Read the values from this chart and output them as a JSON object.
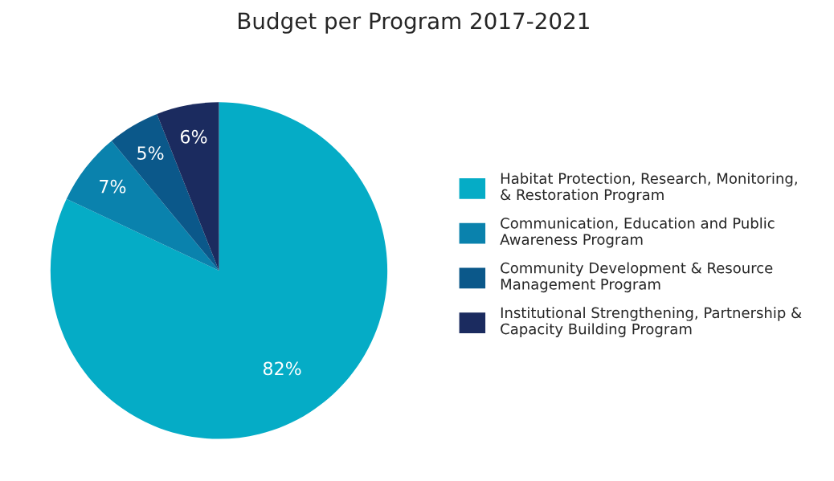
{
  "chart_data": {
    "type": "pie",
    "title": "Budget per Program 2017-2021",
    "categories": [
      "Habitat Protection, Research, Monitoring,\n& Restoration Program",
      "Communication, Education and Public\nAwareness Program",
      "Community Development & Resource\nManagement Program",
      "Institutional Strengthening, Partnership &\nCapacity Building Program"
    ],
    "values": [
      82,
      7,
      5,
      6
    ],
    "colors": [
      "#05acc6",
      "#0a82ad",
      "#0b588a",
      "#1b2b5f"
    ],
    "value_labels": [
      "82%",
      "7%",
      "5%",
      "6%"
    ],
    "legend": "right"
  }
}
